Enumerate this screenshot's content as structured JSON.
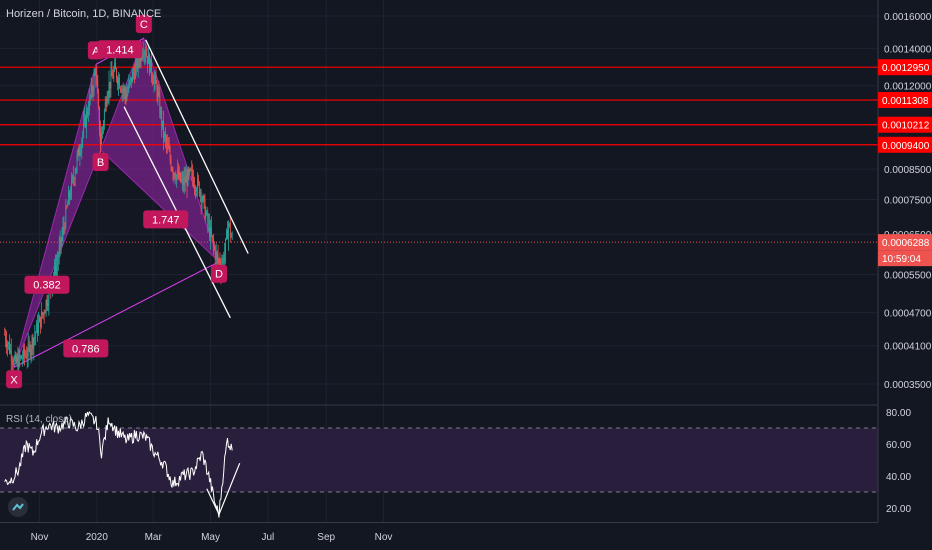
{
  "header": {
    "symbol": "Horizen / Bitcoin, 1D, BINANCE",
    "rsi_label": "RSI (14, close)"
  },
  "colors": {
    "background": "#131722",
    "up": "#26a69a",
    "down": "#ef5350",
    "pattern_fill": "#9c27b0",
    "pattern_label": "#c2185b",
    "level_line": "#ff0000",
    "trendline": "#ffffff",
    "rsi_line": "#ffffff",
    "rsi_band": "#2a1e3d"
  },
  "chart_data": [
    {
      "type": "candlestick",
      "title": "Horizen / Bitcoin, 1D, BINANCE",
      "x_ticks": [
        "Nov",
        "2020",
        "Mar",
        "May",
        "Jul",
        "Sep",
        "Nov"
      ],
      "y_ticks": [
        "0.0016000",
        "0.0014000",
        "0.0012000",
        "0.0008500",
        "0.0007500",
        "0.0006500",
        "0.0005500",
        "0.0004700",
        "0.0004100",
        "0.0003500"
      ],
      "y_scale": "log",
      "ylim": [
        0.00031,
        0.00172
      ],
      "price_labels": [
        {
          "value": "0.0012950",
          "kind": "level"
        },
        {
          "value": "0.0011308",
          "kind": "level"
        },
        {
          "value": "0.0010212",
          "kind": "level"
        },
        {
          "value": "0.0009400",
          "kind": "level"
        },
        {
          "value": "0.0006288",
          "kind": "last_price"
        },
        {
          "value": "10:59:04",
          "kind": "countdown"
        }
      ],
      "levels": [
        0.001295,
        0.0011308,
        0.0010212,
        0.00094
      ],
      "last_price": 0.0006288,
      "harmonic_pattern": {
        "points": [
          {
            "label": "X",
            "date": "2019-10-05",
            "price": 0.000375
          },
          {
            "label": "A",
            "date": "2019-12-31",
            "price": 0.00131
          },
          {
            "label": "B",
            "date": "2020-01-05",
            "price": 0.00092
          },
          {
            "label": "C",
            "date": "2020-02-20",
            "price": 0.00146
          },
          {
            "label": "D",
            "date": "2020-05-10",
            "price": 0.00058
          }
        ],
        "ratios": [
          "0.382",
          "1.414",
          "1.747",
          "0.786"
        ]
      },
      "channel": {
        "upper": [
          {
            "date": "2020-02-22",
            "price": 0.00145
          },
          {
            "date": "2020-06-10",
            "price": 0.0006
          }
        ],
        "lower": [
          {
            "date": "2020-01-30",
            "price": 0.0011
          },
          {
            "date": "2020-05-22",
            "price": 0.00046
          }
        ]
      },
      "price_anchors": [
        [
          "2019-09-25",
          0.00043
        ],
        [
          "2019-10-06",
          0.00038
        ],
        [
          "2019-10-20",
          0.0004
        ],
        [
          "2019-11-05",
          0.00047
        ],
        [
          "2019-11-20",
          0.00058
        ],
        [
          "2019-12-02",
          0.00075
        ],
        [
          "2019-12-15",
          0.00095
        ],
        [
          "2019-12-31",
          0.00128
        ],
        [
          "2020-01-05",
          0.00095
        ],
        [
          "2020-01-12",
          0.00118
        ],
        [
          "2020-01-20",
          0.00128
        ],
        [
          "2020-02-01",
          0.00115
        ],
        [
          "2020-02-10",
          0.00128
        ],
        [
          "2020-02-20",
          0.00142
        ],
        [
          "2020-03-05",
          0.00118
        ],
        [
          "2020-03-12",
          0.00098
        ],
        [
          "2020-03-22",
          0.00085
        ],
        [
          "2020-04-01",
          0.0008
        ],
        [
          "2020-04-10",
          0.00083
        ],
        [
          "2020-04-20",
          0.00078
        ],
        [
          "2020-04-28",
          0.00068
        ],
        [
          "2020-05-06",
          0.0006
        ],
        [
          "2020-05-12",
          0.00057
        ],
        [
          "2020-05-16",
          0.0006
        ],
        [
          "2020-05-20",
          0.00068
        ],
        [
          "2020-05-24",
          0.00063
        ]
      ]
    },
    {
      "type": "line",
      "title": "RSI (14, close)",
      "y_ticks": [
        "80.00",
        "60.00",
        "40.00",
        "20.00"
      ],
      "ylim": [
        15,
        82
      ],
      "band": [
        30,
        70
      ],
      "series": [
        {
          "name": "RSI (14, close)",
          "points": [
            [
              "2019-09-25",
              36
            ],
            [
              "2019-10-02",
              38
            ],
            [
              "2019-10-10",
              44
            ],
            [
              "2019-10-18",
              60
            ],
            [
              "2019-10-25",
              54
            ],
            [
              "2019-11-02",
              66
            ],
            [
              "2019-11-10",
              72
            ],
            [
              "2019-11-20",
              70
            ],
            [
              "2019-12-01",
              74
            ],
            [
              "2019-12-12",
              70
            ],
            [
              "2019-12-22",
              78
            ],
            [
              "2020-01-01",
              73
            ],
            [
              "2020-01-06",
              55
            ],
            [
              "2020-01-14",
              76
            ],
            [
              "2020-01-22",
              68
            ],
            [
              "2020-02-02",
              62
            ],
            [
              "2020-02-12",
              66
            ],
            [
              "2020-02-22",
              64
            ],
            [
              "2020-03-03",
              54
            ],
            [
              "2020-03-12",
              48
            ],
            [
              "2020-03-22",
              35
            ],
            [
              "2020-04-01",
              40
            ],
            [
              "2020-04-12",
              42
            ],
            [
              "2020-04-22",
              54
            ],
            [
              "2020-04-30",
              38
            ],
            [
              "2020-05-06",
              22
            ],
            [
              "2020-05-10",
              16
            ],
            [
              "2020-05-15",
              45
            ],
            [
              "2020-05-19",
              63
            ],
            [
              "2020-05-24",
              56
            ]
          ]
        }
      ],
      "divergence_lines": [
        {
          "from": [
            "2020-04-27",
            32
          ],
          "to": [
            "2020-05-10",
            16
          ]
        },
        {
          "from": [
            "2020-05-10",
            16
          ],
          "to": [
            "2020-06-01",
            48
          ]
        }
      ]
    }
  ]
}
